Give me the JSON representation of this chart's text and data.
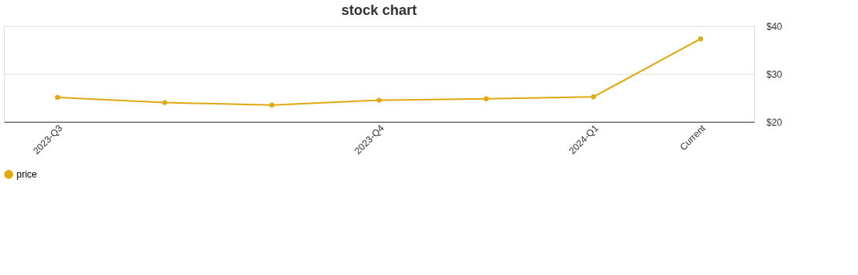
{
  "chart_data": {
    "type": "line",
    "title": "stock chart",
    "categories": [
      "2023-Q3",
      null,
      null,
      "2023-Q4",
      null,
      "2024-Q1",
      "Current"
    ],
    "series": [
      {
        "name": "price",
        "color": "#e0a912",
        "values": [
          25.1,
          24.0,
          23.5,
          24.5,
          24.8,
          25.2,
          37.3
        ]
      }
    ],
    "ylim": [
      20,
      40
    ],
    "yticks": [
      {
        "value": 20,
        "label": "$20"
      },
      {
        "value": 30,
        "label": "$30"
      },
      {
        "value": 40,
        "label": "$40"
      }
    ],
    "grid": "y",
    "legend": "bottom",
    "marker": "circle",
    "line_style": "solid"
  }
}
